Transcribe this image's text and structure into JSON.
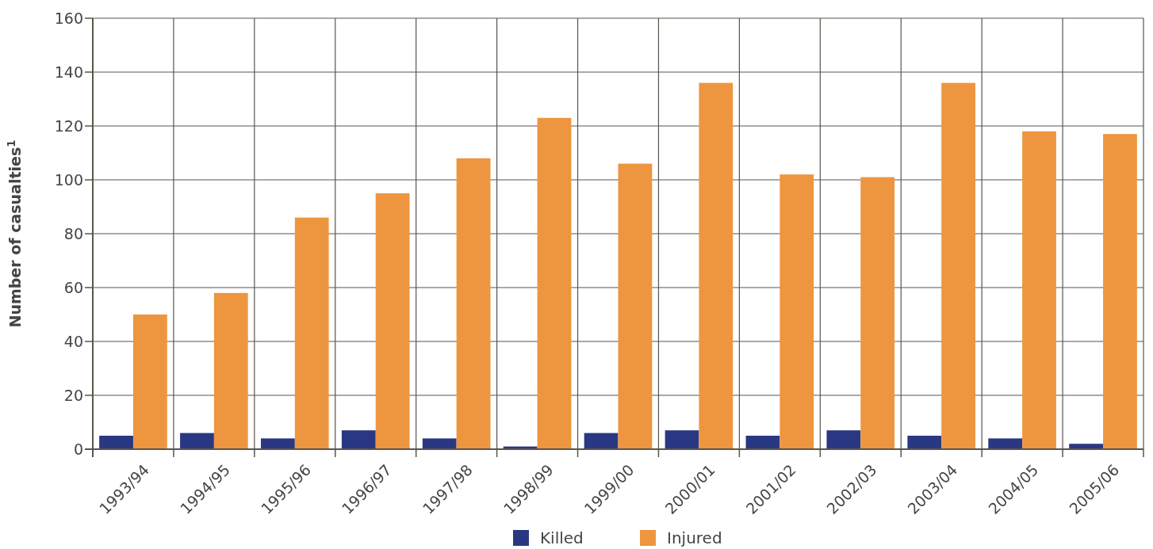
{
  "chart_data": {
    "type": "bar",
    "ylabel": "Number of casualties$^{1}$",
    "categories": [
      "1993/94",
      "1994/95",
      "1995/96",
      "1996/97",
      "1997/98",
      "1998/99",
      "1999/00",
      "2000/01",
      "2001/02",
      "2002/03",
      "2003/04",
      "2004/05",
      "2005/06"
    ],
    "series": [
      {
        "name": "Killed",
        "color": "#2a3883",
        "values": [
          5,
          6,
          4,
          7,
          4,
          1,
          6,
          7,
          5,
          7,
          5,
          4,
          2
        ]
      },
      {
        "name": "Injured",
        "color": "#ed963f",
        "values": [
          50,
          58,
          86,
          95,
          108,
          123,
          106,
          136,
          102,
          101,
          136,
          118,
          117
        ]
      }
    ],
    "ylim": [
      0,
      160
    ],
    "yticks": [
      0,
      20,
      40,
      60,
      80,
      100,
      120,
      140,
      160
    ],
    "grid": true,
    "legend": "bottom"
  }
}
